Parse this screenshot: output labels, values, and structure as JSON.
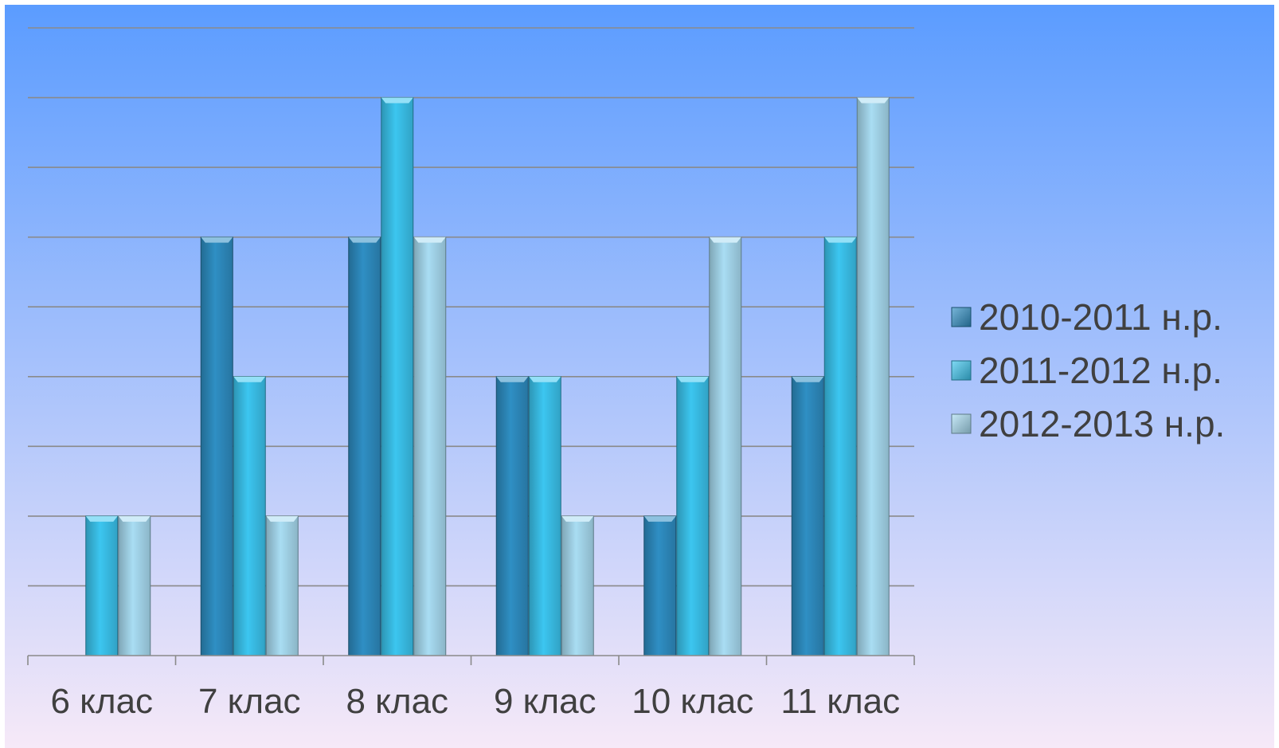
{
  "chart_data": {
    "type": "bar",
    "title": "",
    "xlabel": "",
    "ylabel": "",
    "categories": [
      "6 клас",
      "7 клас",
      "8 клас",
      "9 клас",
      "10 клас",
      "11 клас"
    ],
    "series": [
      {
        "name": "2010-2011 н.р.",
        "values": [
          0,
          6,
          6,
          4,
          2,
          4
        ],
        "color": "#2f8fc4"
      },
      {
        "name": "2011-2012 н.р.",
        "values": [
          2,
          4,
          8,
          4,
          4,
          6
        ],
        "color": "#3cc6f0"
      },
      {
        "name": "2012-2013 н.р.",
        "values": [
          2,
          2,
          6,
          2,
          6,
          8
        ],
        "color": "#a9ddf3"
      }
    ],
    "ylim": [
      0,
      9
    ],
    "y_axis_visible": false,
    "grid": true,
    "legend_position": "right",
    "background": {
      "top": "#5b9cff",
      "bottom": "#f6e9f8"
    }
  }
}
